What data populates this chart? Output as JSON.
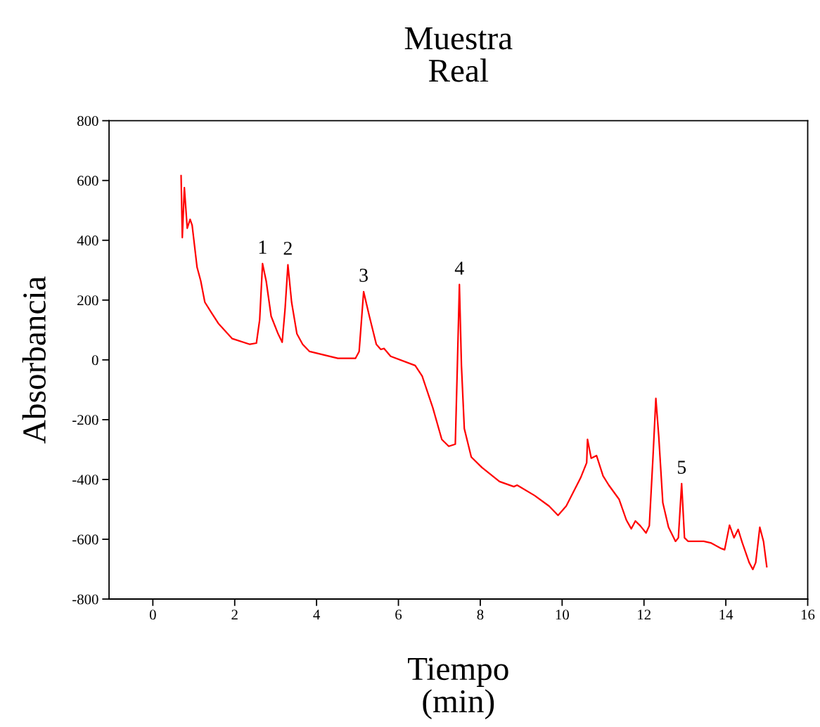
{
  "chart_data": {
    "type": "line",
    "title": "Muestra\nReal",
    "xlabel": "Tiempo\n(min)",
    "ylabel": "Absorbancia",
    "xlim": [
      -1.07,
      16
    ],
    "xticks": [
      0,
      2,
      4,
      6,
      8,
      10,
      12,
      14,
      16
    ],
    "ylim": [
      -800,
      800
    ],
    "yticks": [
      -800,
      -600,
      -400,
      -200,
      0,
      200,
      400,
      600,
      800
    ],
    "grid": false,
    "marker": "none",
    "line_style": "solid",
    "series": [
      {
        "color": "#ff0000",
        "x": [
          0.69,
          0.72,
          0.77,
          0.84,
          0.91,
          0.96,
          1.08,
          1.17,
          1.27,
          1.43,
          1.6,
          1.94,
          2.37,
          2.53,
          2.61,
          2.68,
          2.77,
          2.89,
          3.06,
          3.16,
          3.23,
          3.3,
          3.39,
          3.52,
          3.66,
          3.83,
          4.52,
          4.95,
          5.04,
          5.15,
          5.29,
          5.46,
          5.57,
          5.65,
          5.81,
          6.41,
          6.58,
          6.84,
          7.06,
          7.23,
          7.39,
          7.44,
          7.49,
          7.54,
          7.61,
          7.78,
          8.04,
          8.47,
          8.82,
          8.9,
          9.33,
          9.68,
          9.9,
          10.1,
          10.45,
          10.6,
          10.62,
          10.71,
          10.84,
          11.0,
          11.14,
          11.39,
          11.57,
          11.69,
          11.79,
          11.91,
          12.05,
          12.13,
          12.22,
          12.29,
          12.36,
          12.46,
          12.6,
          12.77,
          12.84,
          12.92,
          12.99,
          13.08,
          13.46,
          13.63,
          13.89,
          13.97,
          14.09,
          14.2,
          14.3,
          14.4,
          14.57,
          14.66,
          14.73,
          14.83,
          14.92,
          15.0
        ],
        "values": [
          616,
          409,
          576,
          440,
          470,
          450,
          310,
          264,
          193,
          158,
          122,
          71,
          52,
          56,
          134,
          322,
          263,
          146,
          87,
          59,
          169,
          318,
          193,
          87,
          52,
          28,
          5,
          5,
          28,
          228,
          146,
          52,
          35,
          38,
          12,
          -19,
          -54,
          -160,
          -266,
          -289,
          -282,
          -19,
          252,
          -19,
          -230,
          -325,
          -360,
          -407,
          -424,
          -419,
          -454,
          -489,
          -520,
          -489,
          -395,
          -344,
          -266,
          -329,
          -320,
          -388,
          -419,
          -466,
          -536,
          -565,
          -539,
          -555,
          -579,
          -555,
          -325,
          -129,
          -254,
          -478,
          -560,
          -607,
          -595,
          -414,
          -595,
          -607,
          -607,
          -612,
          -631,
          -635,
          -553,
          -595,
          -567,
          -611,
          -678,
          -701,
          -678,
          -560,
          -607,
          -692
        ]
      }
    ],
    "annotations": [
      {
        "text": "1",
        "x": 2.68,
        "y": 322
      },
      {
        "text": "2",
        "x": 3.3,
        "y": 318
      },
      {
        "text": "3",
        "x": 5.15,
        "y": 228
      },
      {
        "text": "4",
        "x": 7.49,
        "y": 252
      },
      {
        "text": "5",
        "x": 12.92,
        "y": -414
      }
    ]
  }
}
